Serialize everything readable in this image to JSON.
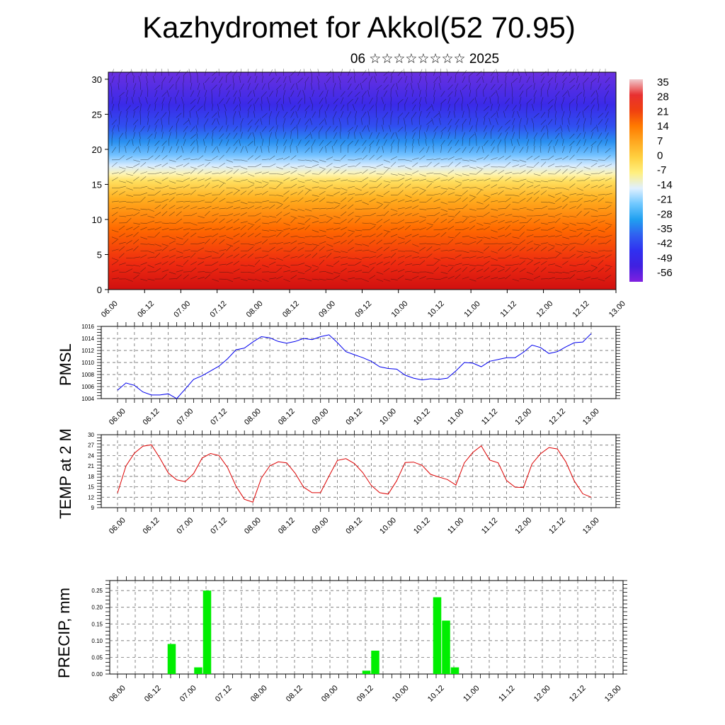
{
  "title": "Kazhydromet for Akkol(52 70.95)",
  "subtitle": "06 ☆☆☆☆☆☆☆☆ 2025",
  "colors": {
    "pmsl_line": "#0000ee",
    "temp_line": "#dd0000",
    "precip_bar": "#00ee00",
    "grid": "#555555"
  },
  "chart_data": [
    {
      "type": "heatmap",
      "name": "cross-section",
      "y_ticks": [
        "0",
        "5",
        "10",
        "15",
        "20",
        "25",
        "30"
      ],
      "ylim": [
        0,
        31
      ],
      "x_ticks": [
        "06.00",
        "06.12",
        "07.00",
        "07.12",
        "08.00",
        "08.12",
        "09.00",
        "09.12",
        "10.00",
        "10.12",
        "11.00",
        "11.12",
        "12.00",
        "12.12",
        "13.00"
      ],
      "colorbar_labels": [
        "35",
        "28",
        "21",
        "14",
        "7",
        "0",
        "-7",
        "-14",
        "-21",
        "-28",
        "-35",
        "-42",
        "-49",
        "-56"
      ],
      "color_stops": [
        "#f0c8cc",
        "#e83030",
        "#f04010",
        "#ff7a00",
        "#ffa820",
        "#ffd040",
        "#fff080",
        "#e0f0ff",
        "#70c8ff",
        "#20a0f0",
        "#3060f0",
        "#3030f0",
        "#4020e0",
        "#8020e0"
      ]
    },
    {
      "type": "line",
      "name": "PMSL",
      "ylabel": "PMSL",
      "ylim": [
        1004,
        1016
      ],
      "y_ticks": [
        "1004",
        "1006",
        "1008",
        "1010",
        "1012",
        "1014",
        "1016"
      ],
      "x_ticks": [
        "06.00",
        "06.12",
        "07.00",
        "07.12",
        "08.00",
        "08.12",
        "09.00",
        "09.12",
        "10.00",
        "10.12",
        "11.00",
        "11.12",
        "12.00",
        "12.12",
        "13.00"
      ],
      "x_hours": [
        0,
        3,
        6,
        9,
        12,
        15,
        18,
        21,
        24,
        27,
        30,
        33,
        36,
        39,
        42,
        45,
        48,
        51,
        54,
        57,
        60,
        63,
        66,
        69,
        72,
        75,
        78,
        81,
        84,
        87,
        90,
        93,
        96,
        99,
        102,
        105,
        108,
        111,
        114,
        117,
        120,
        123,
        126,
        129,
        132,
        135,
        138,
        141,
        144,
        147,
        150,
        153,
        156,
        159,
        162,
        165,
        168
      ],
      "values": [
        1005.4,
        1006.6,
        1006.2,
        1005.1,
        1004.6,
        1004.6,
        1004.8,
        1004.0,
        1005.6,
        1007.2,
        1007.8,
        1008.6,
        1009.4,
        1010.6,
        1012.1,
        1012.4,
        1013.4,
        1014.3,
        1014.1,
        1013.5,
        1013.2,
        1013.5,
        1014.0,
        1013.8,
        1014.3,
        1014.6,
        1013.3,
        1011.8,
        1011.3,
        1010.8,
        1010.2,
        1009.3,
        1009.0,
        1008.9,
        1007.9,
        1007.4,
        1007.1,
        1007.3,
        1007.2,
        1007.4,
        1008.6,
        1010.0,
        1009.9,
        1009.3,
        1010.2,
        1010.5,
        1010.8,
        1010.8,
        1011.7,
        1012.9,
        1012.5,
        1011.5,
        1011.8,
        1012.6,
        1013.3,
        1013.4,
        1014.8
      ]
    },
    {
      "type": "line",
      "name": "TEMP at 2 M",
      "ylabel": "TEMP at 2 M",
      "ylim": [
        9,
        30
      ],
      "y_ticks": [
        "9",
        "12",
        "15",
        "18",
        "21",
        "24",
        "27",
        "30"
      ],
      "x_ticks": [
        "06.00",
        "06.12",
        "07.00",
        "07.12",
        "08.00",
        "08.12",
        "09.00",
        "09.12",
        "10.00",
        "10.12",
        "11.00",
        "11.12",
        "12.00",
        "12.12",
        "13.00"
      ],
      "x_hours": [
        0,
        3,
        6,
        9,
        12,
        15,
        18,
        21,
        24,
        27,
        30,
        33,
        36,
        39,
        42,
        45,
        48,
        51,
        54,
        57,
        60,
        63,
        66,
        69,
        72,
        75,
        78,
        81,
        84,
        87,
        90,
        93,
        96,
        99,
        102,
        105,
        108,
        111,
        114,
        117,
        120,
        123,
        126,
        129,
        132,
        135,
        138,
        141,
        144,
        147,
        150,
        153,
        156,
        159,
        162,
        165,
        168
      ],
      "values": [
        13.2,
        21.0,
        24.7,
        26.7,
        27.1,
        23.3,
        19.0,
        17.0,
        16.5,
        18.8,
        23.3,
        24.6,
        24.0,
        20.6,
        15.2,
        11.4,
        10.6,
        17.5,
        21.0,
        22.2,
        21.9,
        18.9,
        14.9,
        13.3,
        13.3,
        18.1,
        22.6,
        23.1,
        21.7,
        19.1,
        15.4,
        13.3,
        12.9,
        16.7,
        22.0,
        22.1,
        21.2,
        18.6,
        17.8,
        17.1,
        15.5,
        21.9,
        24.9,
        26.8,
        22.7,
        21.9,
        16.8,
        14.9,
        14.8,
        21.6,
        24.5,
        26.3,
        25.9,
        22.2,
        16.7,
        13.0,
        12.0
      ]
    },
    {
      "type": "bar",
      "name": "precip",
      "ylabel": "PRECIP, mm",
      "ylim": [
        0,
        0.28
      ],
      "y_ticks": [
        "0.00",
        "0.05",
        "0.10",
        "0.15",
        "0.20",
        "0.25"
      ],
      "x_ticks": [
        "06.00",
        "06.12",
        "07.00",
        "07.12",
        "08.00",
        "08.12",
        "09.00",
        "09.12",
        "10.00",
        "10.12",
        "11.00",
        "11.12",
        "12.00",
        "12.12",
        "13.00"
      ],
      "x_hours": [
        18,
        27,
        30,
        84,
        87,
        108,
        111,
        114
      ],
      "values": [
        0.09,
        0.02,
        0.25,
        0.01,
        0.07,
        0.23,
        0.16,
        0.02
      ]
    }
  ]
}
